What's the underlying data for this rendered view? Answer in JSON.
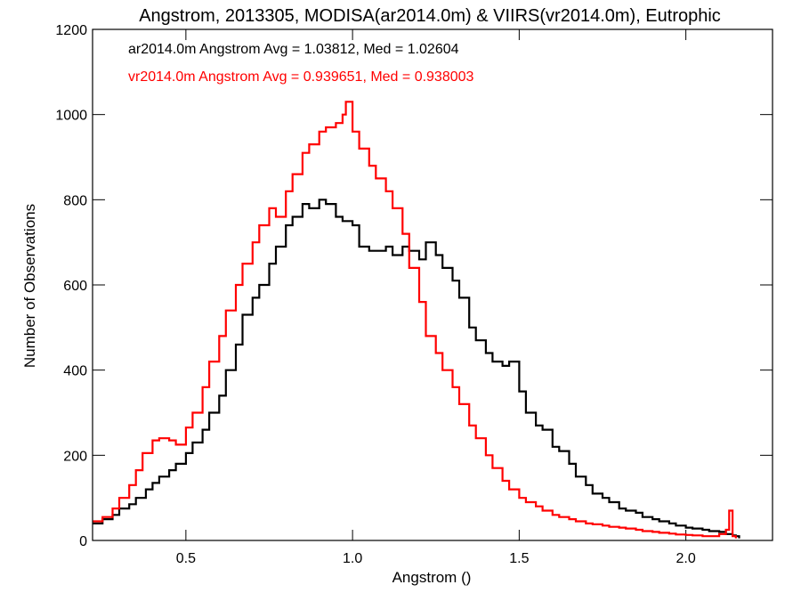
{
  "chart_data": {
    "type": "line",
    "title": "Angstrom, 2013305, MODISA(ar2014.0m) & VIIRS(vr2014.0m), Eutrophic",
    "xlabel": "Angstrom ()",
    "ylabel": "Number of Observations",
    "xlim": [
      0.22,
      2.26
    ],
    "ylim": [
      0,
      1200
    ],
    "x_ticks": [
      0.5,
      1.0,
      1.5,
      2.0
    ],
    "x_tick_labels": [
      "0.5",
      "1.0",
      "1.5",
      "2.0"
    ],
    "y_ticks": [
      0,
      200,
      400,
      600,
      800,
      1000,
      1200
    ],
    "y_tick_labels": [
      "0",
      "200",
      "400",
      "600",
      "800",
      "1000",
      "1200"
    ],
    "grid": false,
    "step": true,
    "annotations": [
      {
        "text": "ar2014.0m Angstrom Avg = 1.03812, Med = 1.02604",
        "color": "#000000"
      },
      {
        "text": "vr2014.0m Angstrom Avg = 0.939651, Med = 0.938003",
        "color": "#ff0000"
      }
    ],
    "series": [
      {
        "color": "#000000",
        "x": [
          0.22,
          0.25,
          0.28,
          0.3,
          0.33,
          0.35,
          0.38,
          0.4,
          0.42,
          0.45,
          0.47,
          0.5,
          0.52,
          0.55,
          0.57,
          0.6,
          0.62,
          0.65,
          0.67,
          0.7,
          0.72,
          0.75,
          0.77,
          0.8,
          0.82,
          0.85,
          0.87,
          0.9,
          0.92,
          0.95,
          0.97,
          1.0,
          1.02,
          1.05,
          1.07,
          1.1,
          1.12,
          1.15,
          1.17,
          1.2,
          1.22,
          1.25,
          1.27,
          1.3,
          1.32,
          1.35,
          1.37,
          1.4,
          1.42,
          1.45,
          1.47,
          1.5,
          1.52,
          1.55,
          1.57,
          1.6,
          1.62,
          1.65,
          1.67,
          1.7,
          1.72,
          1.75,
          1.77,
          1.8,
          1.82,
          1.85,
          1.87,
          1.9,
          1.92,
          1.95,
          1.97,
          2.0,
          2.02,
          2.05,
          2.07,
          2.1,
          2.12,
          2.14,
          2.15,
          2.16
        ],
        "y": [
          40,
          50,
          60,
          75,
          85,
          100,
          120,
          135,
          150,
          165,
          180,
          205,
          230,
          260,
          300,
          340,
          400,
          460,
          530,
          570,
          600,
          650,
          690,
          740,
          760,
          790,
          780,
          800,
          790,
          760,
          750,
          740,
          690,
          680,
          680,
          690,
          670,
          690,
          680,
          660,
          700,
          670,
          640,
          610,
          570,
          500,
          470,
          440,
          420,
          410,
          420,
          350,
          300,
          270,
          260,
          220,
          210,
          180,
          150,
          130,
          110,
          100,
          90,
          75,
          70,
          65,
          55,
          50,
          45,
          40,
          35,
          30,
          28,
          25,
          22,
          20,
          15,
          12,
          10,
          5
        ]
      },
      {
        "color": "#ff0000",
        "x": [
          0.22,
          0.25,
          0.28,
          0.3,
          0.33,
          0.35,
          0.37,
          0.4,
          0.42,
          0.45,
          0.47,
          0.5,
          0.52,
          0.55,
          0.57,
          0.6,
          0.62,
          0.65,
          0.67,
          0.7,
          0.72,
          0.75,
          0.77,
          0.8,
          0.82,
          0.85,
          0.87,
          0.9,
          0.92,
          0.95,
          0.97,
          0.98,
          1.0,
          1.02,
          1.05,
          1.07,
          1.1,
          1.12,
          1.15,
          1.17,
          1.2,
          1.22,
          1.25,
          1.27,
          1.3,
          1.32,
          1.35,
          1.37,
          1.4,
          1.42,
          1.45,
          1.47,
          1.5,
          1.52,
          1.55,
          1.57,
          1.6,
          1.62,
          1.65,
          1.67,
          1.7,
          1.72,
          1.75,
          1.77,
          1.8,
          1.82,
          1.85,
          1.87,
          1.9,
          1.92,
          1.95,
          1.97,
          2.0,
          2.02,
          2.05,
          2.07,
          2.1,
          2.12,
          2.13,
          2.14,
          2.15
        ],
        "y": [
          45,
          55,
          75,
          100,
          130,
          165,
          205,
          235,
          240,
          235,
          225,
          265,
          300,
          360,
          420,
          480,
          540,
          600,
          650,
          700,
          740,
          780,
          760,
          820,
          860,
          910,
          930,
          960,
          970,
          980,
          1000,
          1030,
          960,
          920,
          880,
          850,
          820,
          780,
          720,
          640,
          560,
          480,
          440,
          400,
          360,
          320,
          270,
          240,
          200,
          170,
          140,
          120,
          100,
          90,
          80,
          70,
          60,
          55,
          50,
          45,
          40,
          38,
          35,
          32,
          30,
          28,
          25,
          22,
          20,
          18,
          16,
          14,
          13,
          12,
          10,
          10,
          15,
          25,
          70,
          10,
          5
        ]
      }
    ]
  }
}
